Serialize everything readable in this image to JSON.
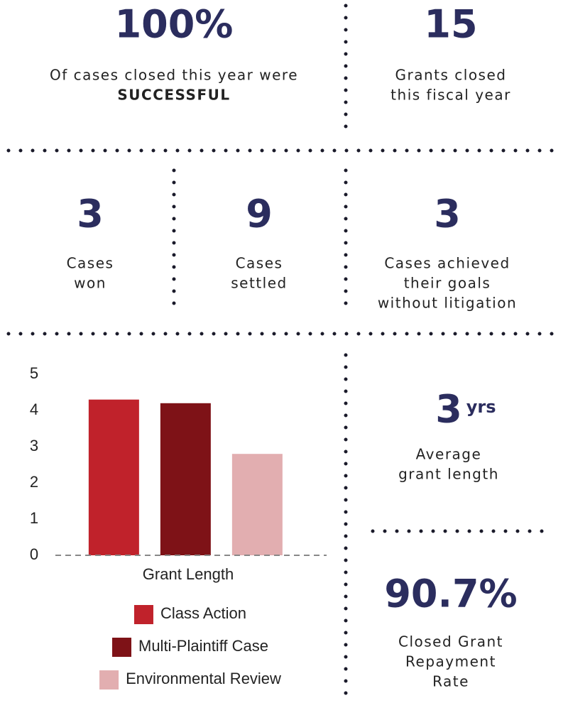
{
  "stats": [
    {
      "value": "100%",
      "lines": [
        "Of cases closed this year were",
        "SUCCESSFUL"
      ]
    },
    {
      "value": "15",
      "lines": [
        "Grants closed",
        "this fiscal year"
      ]
    },
    {
      "value": "3",
      "lines": [
        "Cases",
        "won"
      ]
    },
    {
      "value": "9",
      "lines": [
        "Cases",
        "settled"
      ]
    },
    {
      "value": "3",
      "lines": [
        "Cases achieved",
        "their goals",
        "without litigation"
      ]
    },
    {
      "value": "3",
      "unit": "yrs",
      "lines": [
        "Average",
        "grant length"
      ]
    },
    {
      "value": "90.7%",
      "lines": [
        "Closed Grant",
        "Repayment",
        "Rate"
      ]
    }
  ],
  "chart_data": {
    "type": "bar",
    "xlabel": "Grant Length",
    "categories": [
      "Grant Length"
    ],
    "series": [
      {
        "name": "Class Action",
        "color": "#c0222b",
        "values": [
          4.3
        ]
      },
      {
        "name": "Multi-Plaintiff Case",
        "color": "#7e1217",
        "values": [
          4.2
        ]
      },
      {
        "name": "Environmental Review",
        "color": "#e2aeb0",
        "values": [
          2.8
        ]
      }
    ],
    "ylim": [
      0,
      5
    ],
    "yticks": [
      0,
      1,
      2,
      3,
      4,
      5
    ]
  }
}
